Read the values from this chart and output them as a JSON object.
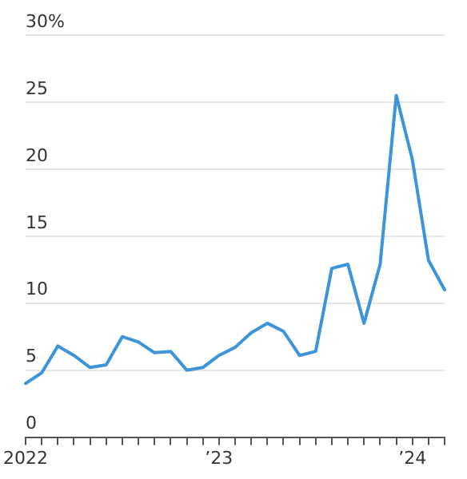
{
  "chart_data": {
    "type": "line",
    "categories": [
      "2022",
      null,
      null,
      null,
      null,
      null,
      null,
      null,
      null,
      null,
      null,
      null,
      "’23",
      null,
      null,
      null,
      null,
      null,
      null,
      null,
      null,
      null,
      null,
      null,
      "’24",
      null,
      null
    ],
    "series": [
      {
        "color": "#3d94d9",
        "values": [
          4.0,
          4.8,
          6.8,
          6.1,
          5.2,
          5.4,
          7.5,
          7.1,
          6.3,
          6.4,
          5.0,
          5.2,
          6.1,
          6.7,
          7.8,
          8.5,
          7.9,
          6.1,
          6.4,
          12.6,
          12.9,
          8.5,
          12.9,
          25.5,
          20.7,
          13.2,
          11.0
        ]
      }
    ],
    "ylim": [
      0,
      30
    ],
    "yticks": [
      0,
      5,
      10,
      15,
      20,
      25,
      {
        "value": 30,
        "label": "30%"
      }
    ],
    "grid": "y",
    "legend": false,
    "marker": "none",
    "line_style": "solid"
  }
}
